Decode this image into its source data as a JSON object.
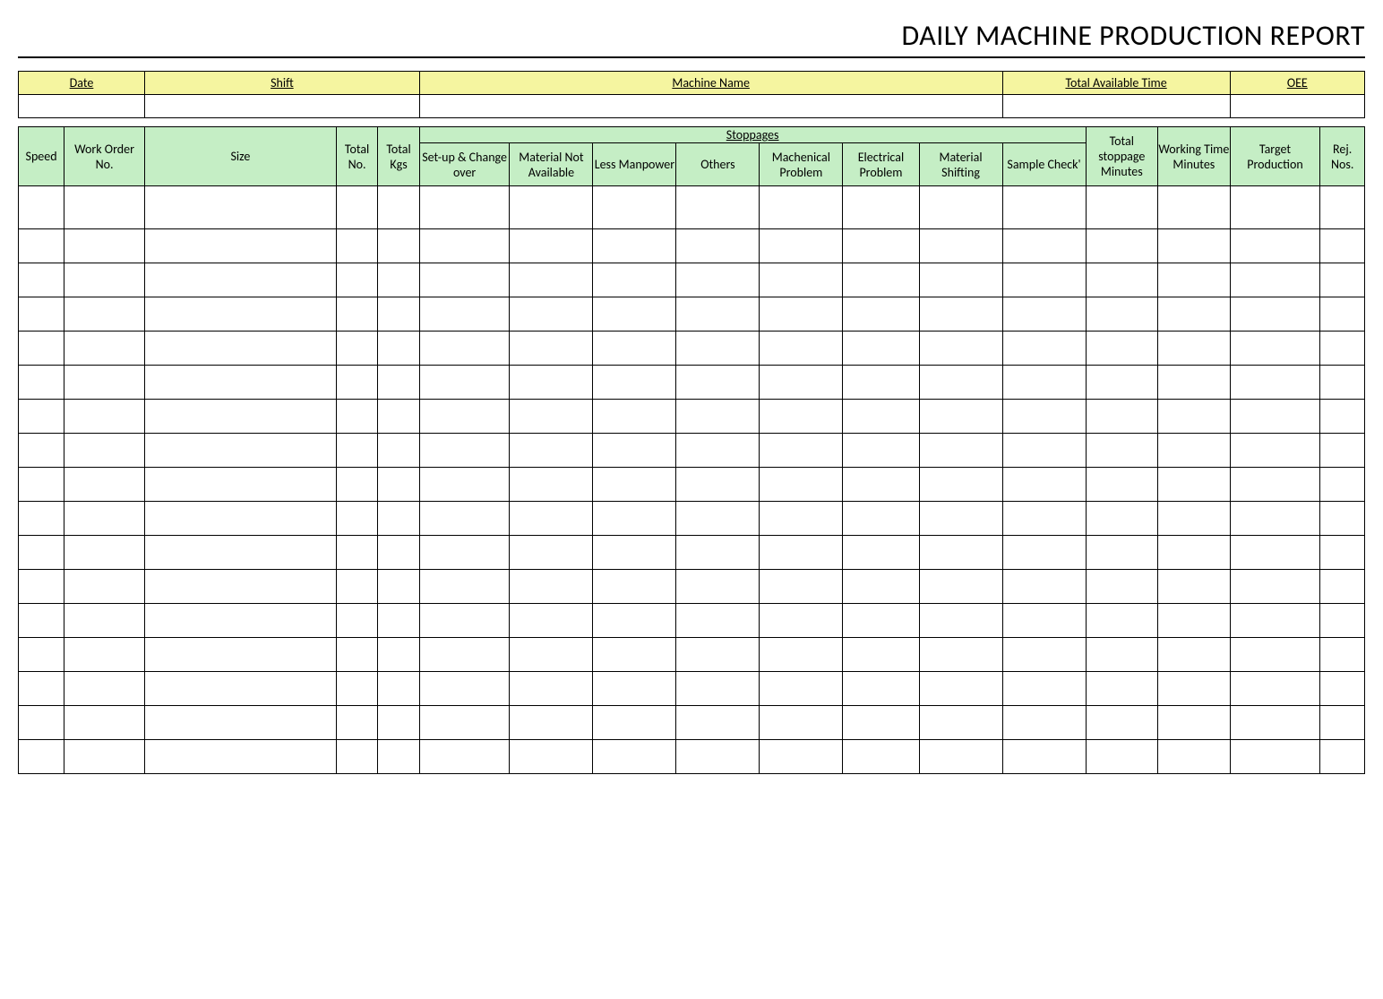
{
  "title": "DAILY MACHINE PRODUCTION REPORT",
  "colors": {
    "yellow_header": "#f5f5a0",
    "green_header": "#c5eec5",
    "border": "#000000",
    "background": "#ffffff"
  },
  "info_headers": {
    "date": "Date",
    "shift": "Shift",
    "machine_name": "Machine Name",
    "total_available_time": "Total Available Time",
    "oee": "OEE"
  },
  "info_values": {
    "date": "",
    "shift": "",
    "machine_name": "",
    "total_available_time": "",
    "oee": ""
  },
  "columns": {
    "speed": "Speed",
    "work_order_no": "Work Order No.",
    "size": "Size",
    "total_no": "Total No.",
    "total_kgs": "Total Kgs",
    "stoppages": "Stoppages",
    "setup_changeover": "Set-up & Change over",
    "material_not_available": "Material Not Available",
    "less_manpower": "Less Manpower",
    "others": "Others",
    "mechanical_problem": "Machenical Problem",
    "electrical_problem": "Electrical Problem",
    "material_shifting": "Material Shifting",
    "sample_check": "Sample Check'",
    "total_stoppage_minutes": "Total stoppage Minutes",
    "working_time_minutes": "Working Time Minutes",
    "target_production": "Target Production",
    "rej_nos": "Rej. Nos."
  },
  "col_widths_pct": {
    "speed": 3.3,
    "work_order_no": 5.8,
    "size": 13.8,
    "total_no": 3.0,
    "total_kgs": 3.0,
    "setup_changeover": 6.5,
    "material_not_available": 6.0,
    "less_manpower": 6.0,
    "others": 6.0,
    "mechanical_problem": 6.0,
    "electrical_problem": 5.5,
    "material_shifting": 6.0,
    "sample_check": 6.0,
    "total_stoppage_minutes": 5.2,
    "working_time_minutes": 5.2,
    "target_production": 6.5,
    "rej_nos": 3.2
  },
  "data_row_count": 17,
  "typography": {
    "title_fontsize": 32,
    "cell_fontsize": 14,
    "font_family": "Calibri"
  }
}
